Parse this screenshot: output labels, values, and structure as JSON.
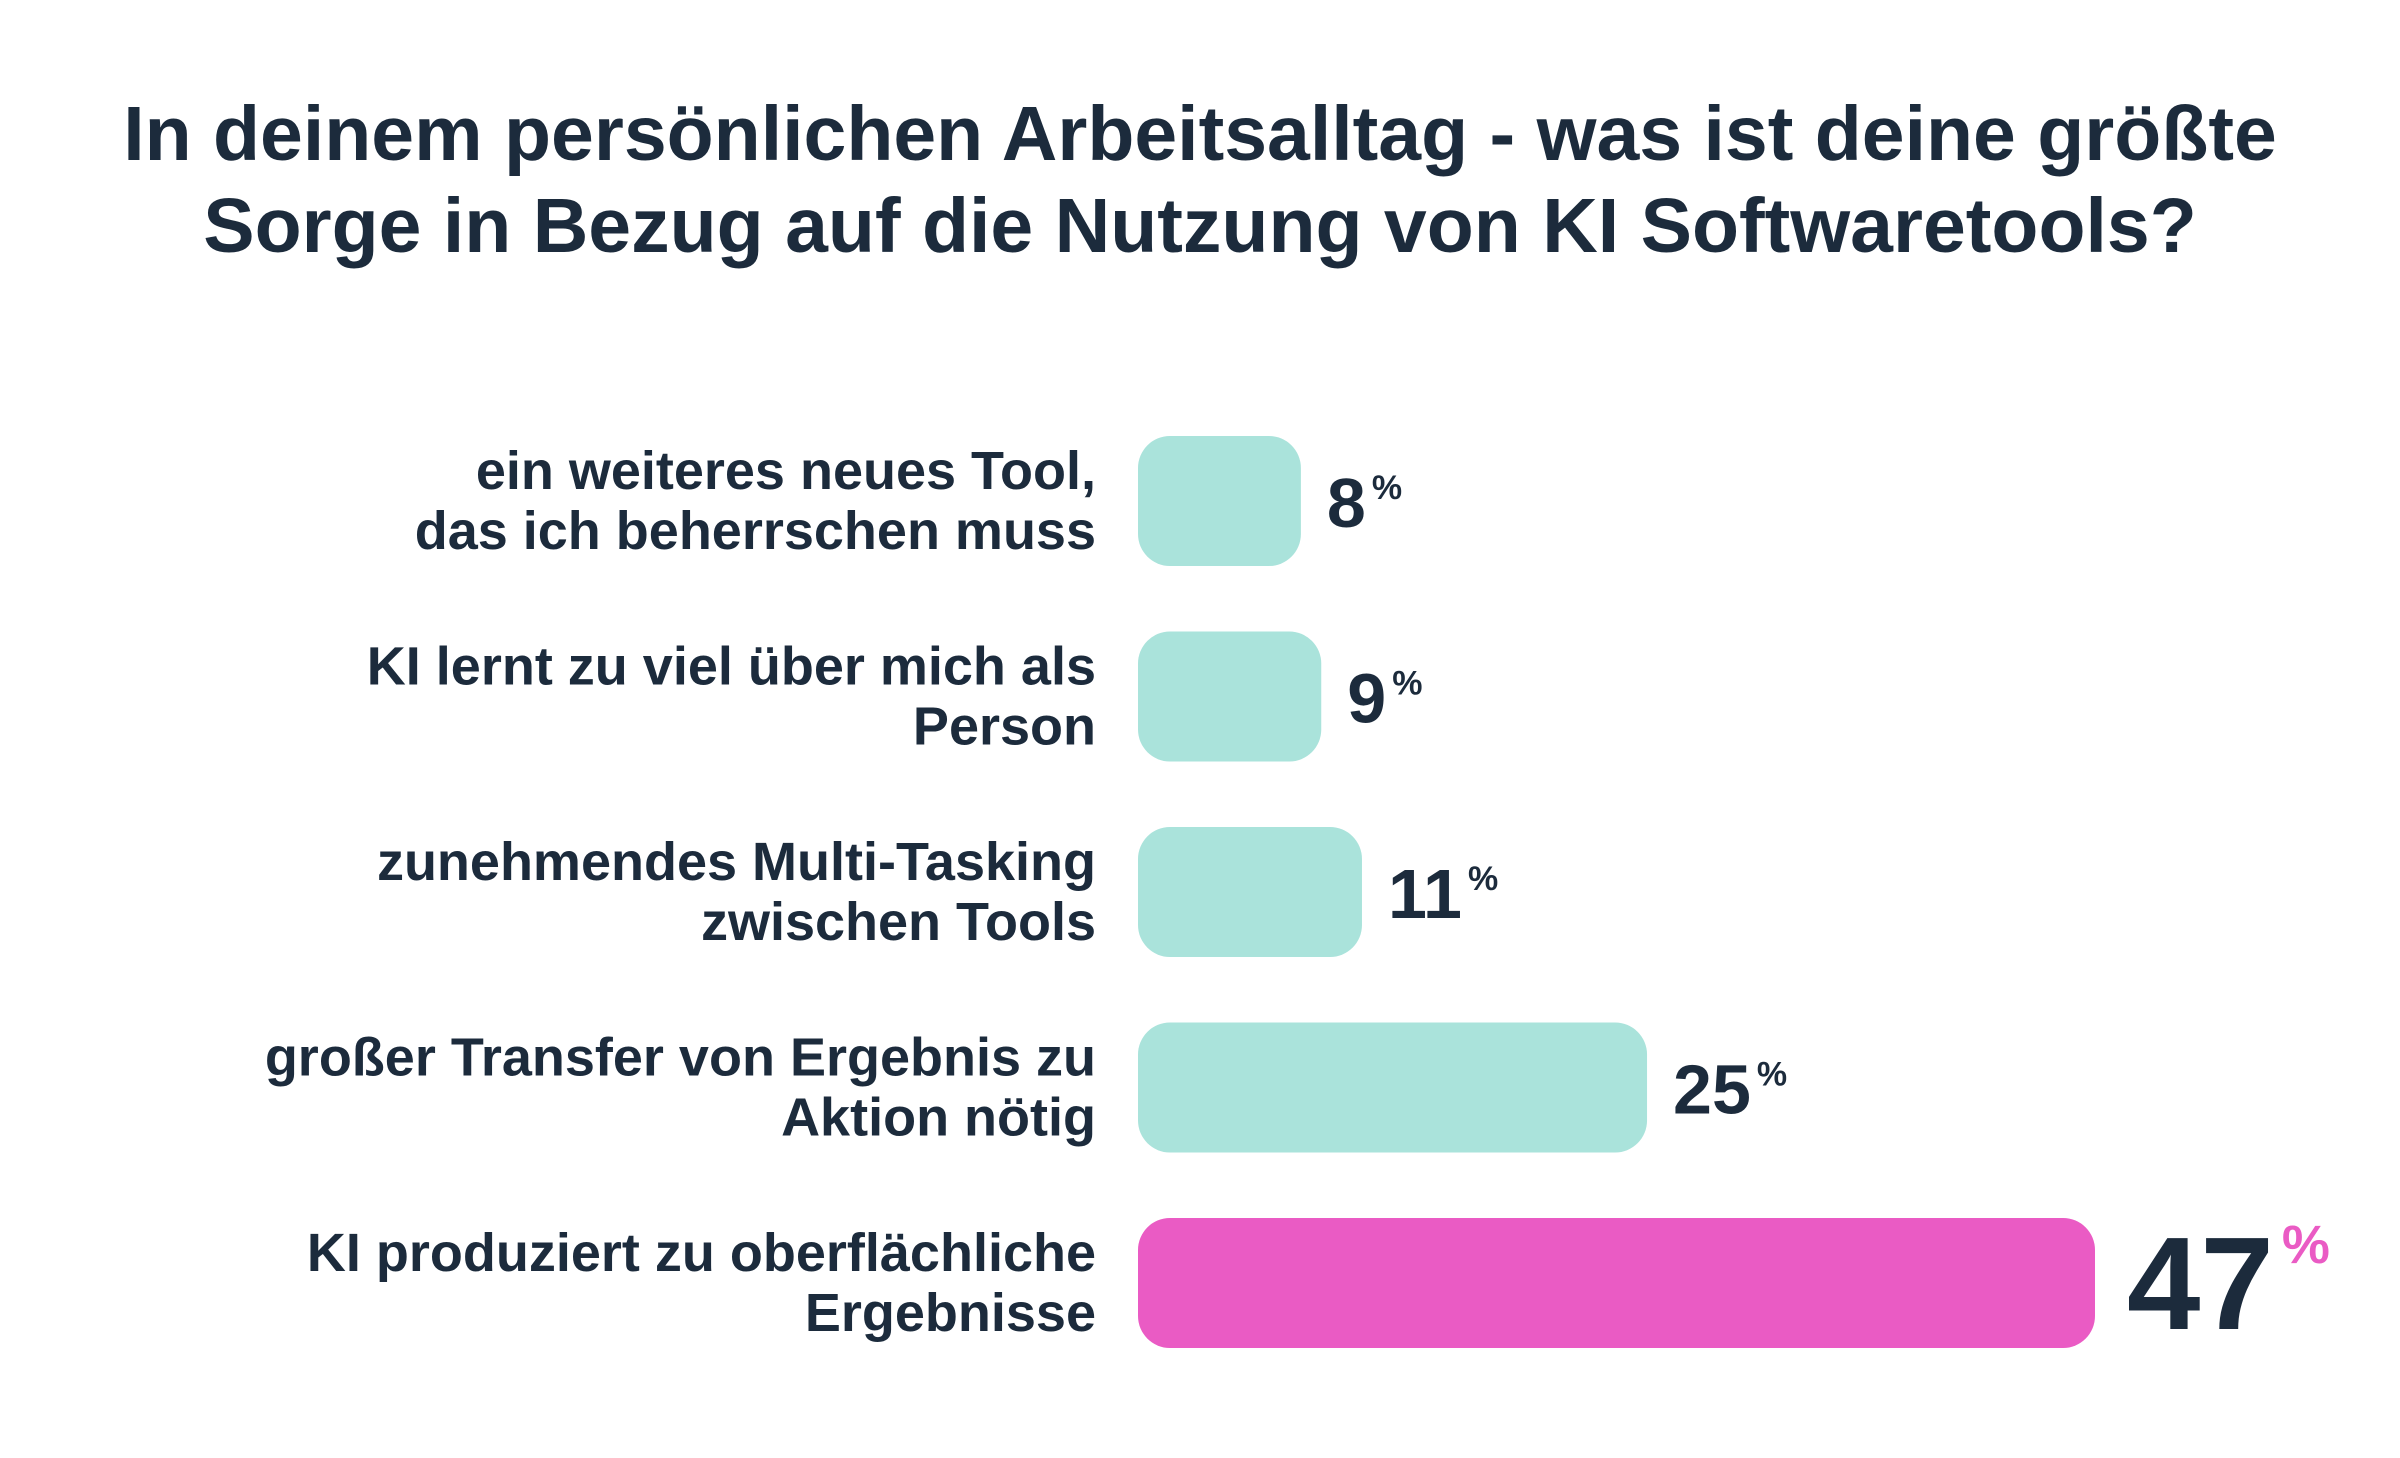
{
  "title_lines": [
    "In deinem persönlichen Arbeitsalltag - was ist deine größte",
    "Sorge in Bezug auf die Nutzung von KI Softwaretools?"
  ],
  "colors": {
    "text": "#1c2b3c",
    "bar": "#aae3db",
    "highlight": "#ea5bc4"
  },
  "chart_data": {
    "type": "bar",
    "orientation": "horizontal",
    "title": "In deinem persönlichen Arbeitsalltag - was ist deine größte Sorge in Bezug auf die Nutzung von KI Softwaretools?",
    "xlabel": "",
    "ylabel": "",
    "unit": "%",
    "xlim": [
      0,
      47
    ],
    "grid": false,
    "categories": [
      [
        "ein weiteres neues Tool,",
        "das ich beherrschen muss"
      ],
      [
        "KI lernt zu viel über mich als",
        "Person"
      ],
      [
        "zunehmendes Multi-Tasking",
        "zwischen Tools"
      ],
      [
        "großer Transfer von Ergebnis zu",
        "Aktion nötig"
      ],
      [
        "KI produziert zu oberflächliche",
        "Ergebnisse"
      ]
    ],
    "values": [
      8,
      9,
      11,
      25,
      47
    ],
    "highlight_index": 4
  }
}
